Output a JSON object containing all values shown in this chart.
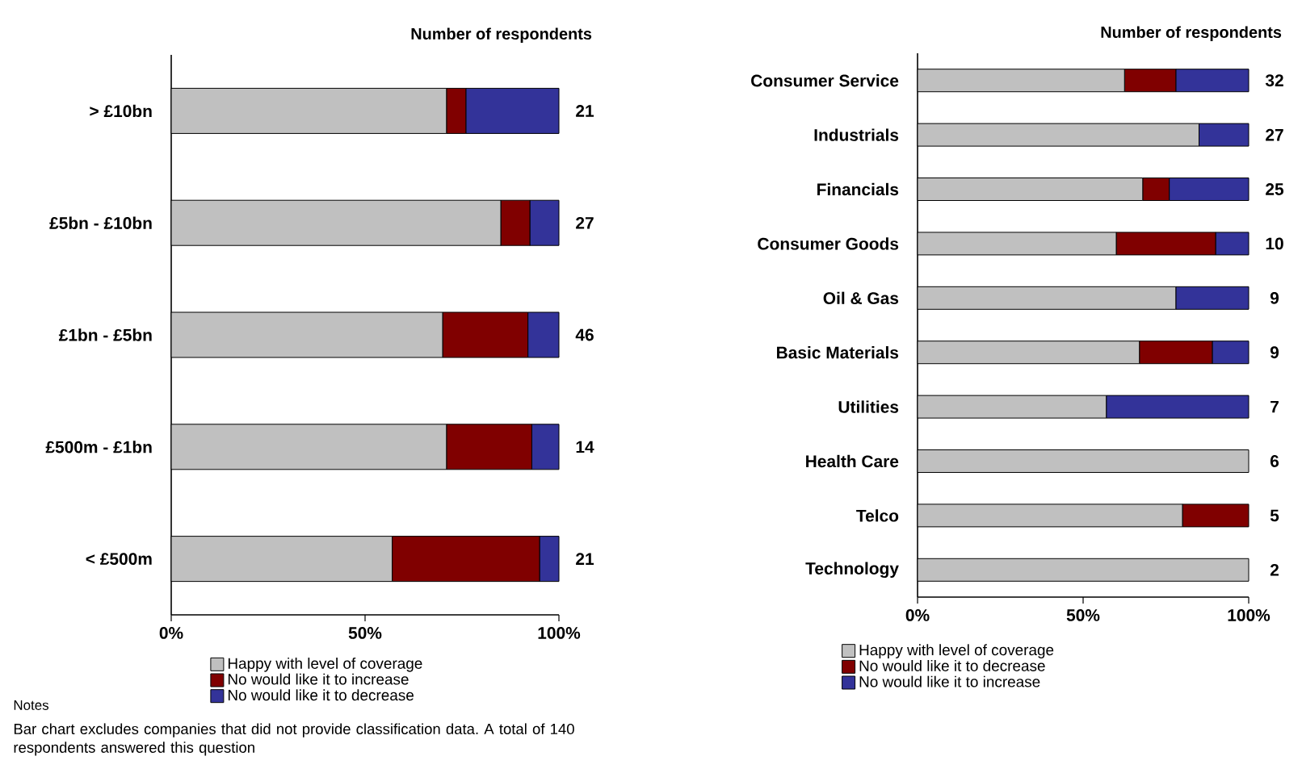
{
  "chart_data": [
    {
      "type": "bar",
      "orientation": "horizontal",
      "stacked": true,
      "legend": "bottom",
      "categories": [
        "> £10bn",
        "£5bn - £10bn",
        "£1bn - £5bn",
        "£500m - £1bn",
        "< £500m"
      ],
      "series": [
        {
          "name": "Happy with level of coverage",
          "color": "#c0c0c0",
          "values": [
            71,
            85,
            70,
            71,
            57
          ]
        },
        {
          "name": "No would like it to increase",
          "color": "#800000",
          "values": [
            5,
            7.5,
            22,
            22,
            38
          ]
        },
        {
          "name": "No would like it to decrease",
          "color": "#333399",
          "values": [
            24,
            7.5,
            8,
            7,
            5
          ]
        }
      ],
      "xlim": [
        0,
        100
      ],
      "xticks": [
        {
          "value": 0,
          "label": "0%"
        },
        {
          "value": 50,
          "label": "50%"
        },
        {
          "value": 100,
          "label": "100%"
        }
      ],
      "annotations": [
        "Number of respondents",
        "Notes",
        "Bar chart excludes companies that did not provide classification data. A total of 140 respondents answered this question",
        "21",
        "27",
        "46",
        "14",
        "21"
      ]
    },
    {
      "type": "bar",
      "orientation": "horizontal",
      "stacked": true,
      "legend": "bottom",
      "categories": [
        "Consumer Service",
        "Industrials",
        "Financials",
        "Consumer Goods",
        "Oil & Gas",
        "Basic Materials",
        "Utilities",
        "Health Care",
        "Telco",
        "Technology"
      ],
      "series": [
        {
          "name": "Happy with level of coverage",
          "color": "#c0c0c0",
          "values": [
            62.5,
            85,
            68,
            60,
            78,
            67,
            57,
            100,
            80,
            100
          ]
        },
        {
          "name": "No would like it to decrease",
          "color": "#800000",
          "values": [
            15.5,
            0,
            8,
            30,
            0,
            22,
            0,
            0,
            20,
            0
          ]
        },
        {
          "name": "No would like it to increase",
          "color": "#333399",
          "values": [
            22,
            15,
            24,
            10,
            22,
            11,
            43,
            0,
            0,
            0
          ]
        }
      ],
      "xlim": [
        0,
        100
      ],
      "xticks": [
        {
          "value": 0,
          "label": "0%"
        },
        {
          "value": 50,
          "label": "50%"
        },
        {
          "value": 100,
          "label": "100%"
        }
      ],
      "annotations": [
        "Number of respondents",
        "32",
        "27",
        "25",
        "10",
        "9",
        "9",
        "7",
        "6",
        "5",
        "2"
      ]
    }
  ]
}
